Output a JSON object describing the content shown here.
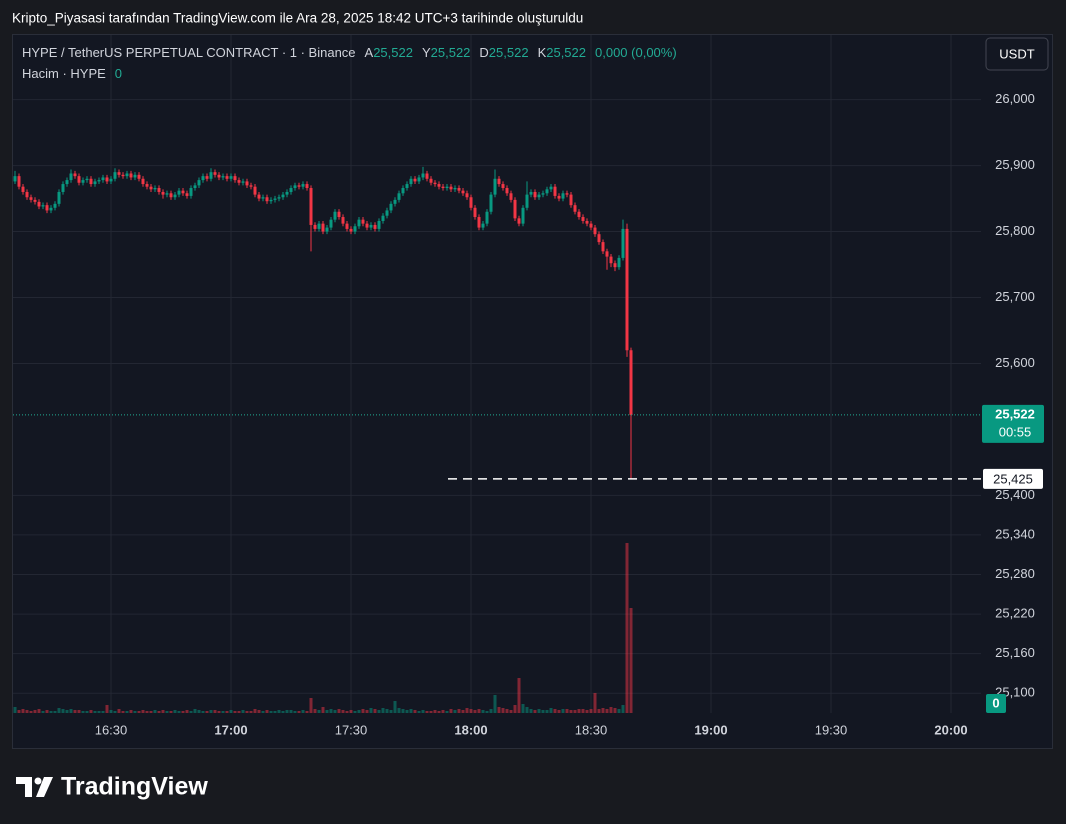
{
  "chart_data": {
    "type": "candlestick",
    "caption": "Kripto_Piyasasi tarafından TradingView.com ile Ara 28, 2025 18:42 UTC+3 tarihinde oluşturuldu",
    "title": "HYPE / TetherUS PERPETUAL CONTRACT · 1 · Binance",
    "ohlc_legend": [
      {
        "label": "A",
        "value": "25,522"
      },
      {
        "label": "Y",
        "value": "25,522"
      },
      {
        "label": "D",
        "value": "25,522"
      },
      {
        "label": "K",
        "value": "25,522"
      }
    ],
    "change": "0,000 (0,00%)",
    "volume_legend": {
      "label": "Hacim · HYPE",
      "value": "0"
    },
    "currency": "USDT",
    "brand": "TradingView",
    "up_color": "#089981",
    "down_color": "#f23645",
    "grid": true,
    "xlim": [
      "16:06",
      "20:08"
    ],
    "xticks": [
      "16:30",
      "17:00",
      "17:30",
      "18:00",
      "18:30",
      "19:00",
      "19:30",
      "20:00"
    ],
    "ylim": [
      25070,
      26098
    ],
    "yticks": [
      {
        "value": 26000,
        "label": "26,000"
      },
      {
        "value": 25900,
        "label": "25,900"
      },
      {
        "value": 25800,
        "label": "25,800"
      },
      {
        "value": 25700,
        "label": "25,700"
      },
      {
        "value": 25600,
        "label": "25,600"
      },
      {
        "value": 25400,
        "label": "25,400"
      },
      {
        "value": 25340,
        "label": "25,340"
      },
      {
        "value": 25280,
        "label": "25,280"
      },
      {
        "value": 25220,
        "label": "25,220"
      },
      {
        "value": 25160,
        "label": "25,160"
      },
      {
        "value": 25100,
        "label": "25,100"
      }
    ],
    "last_price": {
      "value": 25522,
      "label": "25,522"
    },
    "countdown": "00:55",
    "marked_level": {
      "value": 25425,
      "label": "25,425"
    },
    "vlim": [
      0,
      180
    ],
    "volume_axis_label": "0",
    "x": [
      "16:06",
      "16:07",
      "16:08",
      "16:09",
      "16:10",
      "16:11",
      "16:12",
      "16:13",
      "16:14",
      "16:15",
      "16:16",
      "16:17",
      "16:18",
      "16:19",
      "16:20",
      "16:21",
      "16:22",
      "16:23",
      "16:24",
      "16:25",
      "16:26",
      "16:27",
      "16:28",
      "16:29",
      "16:30",
      "16:31",
      "16:32",
      "16:33",
      "16:34",
      "16:35",
      "16:36",
      "16:37",
      "16:38",
      "16:39",
      "16:40",
      "16:41",
      "16:42",
      "16:43",
      "16:44",
      "16:45",
      "16:46",
      "16:47",
      "16:48",
      "16:49",
      "16:50",
      "16:51",
      "16:52",
      "16:53",
      "16:54",
      "16:55",
      "16:56",
      "16:57",
      "16:58",
      "16:59",
      "17:00",
      "17:01",
      "17:02",
      "17:03",
      "17:04",
      "17:05",
      "17:06",
      "17:07",
      "17:08",
      "17:09",
      "17:10",
      "17:11",
      "17:12",
      "17:13",
      "17:14",
      "17:15",
      "17:16",
      "17:17",
      "17:18",
      "17:19",
      "17:20",
      "17:21",
      "17:22",
      "17:23",
      "17:24",
      "17:25",
      "17:26",
      "17:27",
      "17:28",
      "17:29",
      "17:30",
      "17:31",
      "17:32",
      "17:33",
      "17:34",
      "17:35",
      "17:36",
      "17:37",
      "17:38",
      "17:39",
      "17:40",
      "17:41",
      "17:42",
      "17:43",
      "17:44",
      "17:45",
      "17:46",
      "17:47",
      "17:48",
      "17:49",
      "17:50",
      "17:51",
      "17:52",
      "17:53",
      "17:54",
      "17:55",
      "17:56",
      "17:57",
      "17:58",
      "17:59",
      "18:00",
      "18:01",
      "18:02",
      "18:03",
      "18:04",
      "18:05",
      "18:06",
      "18:07",
      "18:08",
      "18:09",
      "18:10",
      "18:11",
      "18:12",
      "18:13",
      "18:14",
      "18:15",
      "18:16",
      "18:17",
      "18:18",
      "18:19",
      "18:20",
      "18:21",
      "18:22",
      "18:23",
      "18:24",
      "18:25",
      "18:26",
      "18:27",
      "18:28",
      "18:29",
      "18:30",
      "18:31",
      "18:32",
      "18:33",
      "18:34",
      "18:35",
      "18:36",
      "18:37",
      "18:38",
      "18:39",
      "18:40"
    ],
    "ohlc": [
      [
        25876,
        25892,
        25872,
        25884
      ],
      [
        25884,
        25888,
        25864,
        25868
      ],
      [
        25868,
        25872,
        25856,
        25860
      ],
      [
        25860,
        25864,
        25848,
        25852
      ],
      [
        25852,
        25856,
        25844,
        25848
      ],
      [
        25848,
        25852,
        25841,
        25845
      ],
      [
        25845,
        25849,
        25834,
        25838
      ],
      [
        25838,
        25844,
        25834,
        25840
      ],
      [
        25840,
        25844,
        25828,
        25832
      ],
      [
        25832,
        25840,
        25828,
        25836
      ],
      [
        25836,
        25846,
        25832,
        25842
      ],
      [
        25842,
        25864,
        25838,
        25860
      ],
      [
        25860,
        25876,
        25856,
        25872
      ],
      [
        25872,
        25882,
        25868,
        25878
      ],
      [
        25878,
        25894,
        25874,
        25888
      ],
      [
        25888,
        25892,
        25880,
        25884
      ],
      [
        25884,
        25888,
        25870,
        25874
      ],
      [
        25874,
        25882,
        25870,
        25878
      ],
      [
        25878,
        25884,
        25874,
        25880
      ],
      [
        25880,
        25884,
        25868,
        25872
      ],
      [
        25872,
        25880,
        25868,
        25876
      ],
      [
        25876,
        25882,
        25872,
        25878
      ],
      [
        25878,
        25886,
        25874,
        25882
      ],
      [
        25882,
        25886,
        25872,
        25876
      ],
      [
        25876,
        25884,
        25872,
        25880
      ],
      [
        25880,
        25896,
        25876,
        25890
      ],
      [
        25890,
        25894,
        25882,
        25886
      ],
      [
        25886,
        25890,
        25880,
        25884
      ],
      [
        25884,
        25892,
        25880,
        25888
      ],
      [
        25888,
        25892,
        25878,
        25882
      ],
      [
        25882,
        25890,
        25878,
        25886
      ],
      [
        25886,
        25890,
        25876,
        25880
      ],
      [
        25880,
        25884,
        25868,
        25872
      ],
      [
        25872,
        25876,
        25864,
        25868
      ],
      [
        25868,
        25872,
        25860,
        25864
      ],
      [
        25864,
        25870,
        25860,
        25866
      ],
      [
        25866,
        25870,
        25856,
        25860
      ],
      [
        25860,
        25864,
        25850,
        25856
      ],
      [
        25856,
        25862,
        25852,
        25858
      ],
      [
        25858,
        25862,
        25848,
        25852
      ],
      [
        25852,
        25860,
        25848,
        25856
      ],
      [
        25856,
        25866,
        25852,
        25862
      ],
      [
        25862,
        25866,
        25854,
        25858
      ],
      [
        25858,
        25862,
        25850,
        25854
      ],
      [
        25854,
        25870,
        25850,
        25866
      ],
      [
        25866,
        25874,
        25862,
        25870
      ],
      [
        25870,
        25882,
        25866,
        25878
      ],
      [
        25878,
        25888,
        25874,
        25884
      ],
      [
        25884,
        25888,
        25876,
        25880
      ],
      [
        25880,
        25896,
        25876,
        25890
      ],
      [
        25890,
        25894,
        25882,
        25886
      ],
      [
        25886,
        25890,
        25878,
        25882
      ],
      [
        25882,
        25888,
        25878,
        25884
      ],
      [
        25884,
        25888,
        25876,
        25880
      ],
      [
        25880,
        25888,
        25876,
        25884
      ],
      [
        25884,
        25888,
        25874,
        25878
      ],
      [
        25878,
        25882,
        25870,
        25874
      ],
      [
        25874,
        25880,
        25870,
        25876
      ],
      [
        25876,
        25880,
        25866,
        25870
      ],
      [
        25870,
        25874,
        25864,
        25868
      ],
      [
        25868,
        25872,
        25852,
        25856
      ],
      [
        25856,
        25860,
        25846,
        25850
      ],
      [
        25850,
        25856,
        25846,
        25852
      ],
      [
        25852,
        25856,
        25842,
        25846
      ],
      [
        25846,
        25852,
        25842,
        25848
      ],
      [
        25848,
        25854,
        25844,
        25850
      ],
      [
        25850,
        25856,
        25846,
        25852
      ],
      [
        25852,
        25860,
        25848,
        25856
      ],
      [
        25856,
        25864,
        25852,
        25860
      ],
      [
        25860,
        25870,
        25856,
        25866
      ],
      [
        25866,
        25874,
        25862,
        25870
      ],
      [
        25870,
        25874,
        25864,
        25868
      ],
      [
        25868,
        25876,
        25864,
        25872
      ],
      [
        25872,
        25876,
        25862,
        25866
      ],
      [
        25866,
        25870,
        25770,
        25810
      ],
      [
        25810,
        25814,
        25800,
        25804
      ],
      [
        25804,
        25816,
        25800,
        25812
      ],
      [
        25812,
        25816,
        25796,
        25800
      ],
      [
        25800,
        25810,
        25796,
        25806
      ],
      [
        25806,
        25822,
        25802,
        25818
      ],
      [
        25818,
        25834,
        25814,
        25830
      ],
      [
        25830,
        25834,
        25818,
        25822
      ],
      [
        25822,
        25826,
        25808,
        25812
      ],
      [
        25812,
        25816,
        25800,
        25804
      ],
      [
        25804,
        25808,
        25796,
        25800
      ],
      [
        25800,
        25812,
        25796,
        25808
      ],
      [
        25808,
        25822,
        25804,
        25818
      ],
      [
        25818,
        25822,
        25808,
        25812
      ],
      [
        25812,
        25816,
        25802,
        25806
      ],
      [
        25806,
        25814,
        25802,
        25810
      ],
      [
        25810,
        25814,
        25800,
        25804
      ],
      [
        25804,
        25820,
        25800,
        25816
      ],
      [
        25816,
        25828,
        25812,
        25824
      ],
      [
        25824,
        25836,
        25820,
        25832
      ],
      [
        25832,
        25846,
        25828,
        25842
      ],
      [
        25842,
        25852,
        25838,
        25848
      ],
      [
        25848,
        25862,
        25844,
        25858
      ],
      [
        25858,
        25870,
        25854,
        25866
      ],
      [
        25866,
        25876,
        25862,
        25872
      ],
      [
        25872,
        25884,
        25868,
        25880
      ],
      [
        25880,
        25884,
        25872,
        25876
      ],
      [
        25876,
        25886,
        25872,
        25882
      ],
      [
        25882,
        25898,
        25878,
        25888
      ],
      [
        25888,
        25892,
        25876,
        25880
      ],
      [
        25880,
        25884,
        25870,
        25874
      ],
      [
        25874,
        25878,
        25868,
        25872
      ],
      [
        25872,
        25876,
        25864,
        25868
      ],
      [
        25868,
        25872,
        25862,
        25866
      ],
      [
        25866,
        25872,
        25862,
        25868
      ],
      [
        25868,
        25872,
        25860,
        25864
      ],
      [
        25864,
        25870,
        25860,
        25866
      ],
      [
        25866,
        25870,
        25858,
        25862
      ],
      [
        25862,
        25866,
        25854,
        25858
      ],
      [
        25858,
        25862,
        25848,
        25852
      ],
      [
        25852,
        25856,
        25832,
        25836
      ],
      [
        25836,
        25840,
        25818,
        25822
      ],
      [
        25822,
        25826,
        25802,
        25806
      ],
      [
        25806,
        25816,
        25802,
        25812
      ],
      [
        25812,
        25834,
        25808,
        25830
      ],
      [
        25830,
        25860,
        25826,
        25856
      ],
      [
        25856,
        25894,
        25852,
        25880
      ],
      [
        25880,
        25884,
        25868,
        25872
      ],
      [
        25872,
        25876,
        25862,
        25866
      ],
      [
        25866,
        25870,
        25854,
        25858
      ],
      [
        25858,
        25862,
        25844,
        25848
      ],
      [
        25848,
        25852,
        25816,
        25820
      ],
      [
        25820,
        25824,
        25808,
        25812
      ],
      [
        25812,
        25840,
        25808,
        25836
      ],
      [
        25836,
        25876,
        25832,
        25856
      ],
      [
        25856,
        25864,
        25852,
        25860
      ],
      [
        25860,
        25864,
        25848,
        25852
      ],
      [
        25852,
        25860,
        25848,
        25856
      ],
      [
        25856,
        25862,
        25852,
        25858
      ],
      [
        25858,
        25868,
        25854,
        25864
      ],
      [
        25864,
        25872,
        25860,
        25868
      ],
      [
        25868,
        25872,
        25850,
        25854
      ],
      [
        25854,
        25858,
        25846,
        25850
      ],
      [
        25850,
        25862,
        25846,
        25858
      ],
      [
        25858,
        25862,
        25852,
        25856
      ],
      [
        25856,
        25860,
        25836,
        25840
      ],
      [
        25840,
        25844,
        25826,
        25830
      ],
      [
        25830,
        25834,
        25818,
        25822
      ],
      [
        25822,
        25826,
        25812,
        25816
      ],
      [
        25816,
        25820,
        25808,
        25812
      ],
      [
        25812,
        25816,
        25802,
        25806
      ],
      [
        25806,
        25810,
        25792,
        25796
      ],
      [
        25796,
        25800,
        25780,
        25784
      ],
      [
        25784,
        25788,
        25766,
        25770
      ],
      [
        25770,
        25774,
        25742,
        25762
      ],
      [
        25762,
        25766,
        25746,
        25752
      ],
      [
        25752,
        25756,
        25740,
        25746
      ],
      [
        25746,
        25764,
        25742,
        25760
      ],
      [
        25760,
        25818,
        25756,
        25804
      ],
      [
        25804,
        25812,
        25610,
        25620
      ],
      [
        25620,
        25624,
        25425,
        25522
      ]
    ],
    "volume": [
      6,
      3,
      4,
      3,
      2,
      3,
      4,
      2,
      3,
      2,
      2,
      5,
      4,
      3,
      4,
      3,
      3,
      2,
      2,
      3,
      2,
      2,
      2,
      8,
      3,
      2,
      4,
      2,
      2,
      3,
      2,
      2,
      3,
      2,
      2,
      3,
      2,
      3,
      2,
      2,
      3,
      2,
      2,
      3,
      2,
      4,
      3,
      2,
      2,
      3,
      3,
      2,
      2,
      2,
      3,
      2,
      2,
      3,
      2,
      2,
      4,
      3,
      2,
      3,
      2,
      2,
      3,
      2,
      3,
      3,
      2,
      2,
      3,
      2,
      15,
      4,
      3,
      6,
      3,
      4,
      3,
      4,
      3,
      2,
      3,
      2,
      3,
      4,
      3,
      5,
      4,
      3,
      5,
      4,
      3,
      12,
      5,
      4,
      3,
      4,
      3,
      2,
      3,
      2,
      2,
      3,
      2,
      3,
      2,
      4,
      3,
      4,
      3,
      5,
      4,
      3,
      4,
      3,
      2,
      4,
      18,
      6,
      5,
      4,
      3,
      8,
      35,
      9,
      6,
      4,
      3,
      4,
      3,
      3,
      5,
      4,
      3,
      4,
      4,
      3,
      3,
      4,
      4,
      3,
      4,
      20,
      4,
      5,
      4,
      6,
      5,
      4,
      8,
      170,
      105
    ]
  }
}
